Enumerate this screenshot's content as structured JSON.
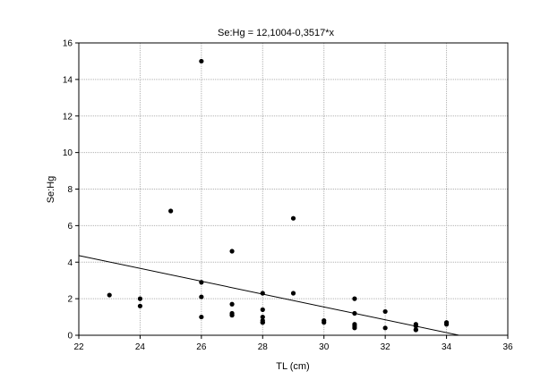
{
  "chart_data": {
    "type": "scatter",
    "title": "Se:Hg = 12,1004-0,3517*x",
    "xlabel": "TL (cm)",
    "ylabel": "Se:Hg",
    "xlim": [
      22,
      36
    ],
    "ylim": [
      0,
      16
    ],
    "xticks": [
      22,
      24,
      26,
      28,
      30,
      32,
      34,
      36
    ],
    "yticks": [
      0,
      2,
      4,
      6,
      8,
      10,
      12,
      14,
      16
    ],
    "grid": true,
    "legend": "none",
    "colors": {
      "points": "#000000",
      "line": "#000000",
      "grid": "#b0b0b0",
      "axis": "#000000"
    },
    "regression": {
      "intercept": 12.1004,
      "slope": -0.3517
    },
    "series": [
      {
        "x": [
          23,
          24,
          24,
          25,
          26,
          26,
          26,
          26,
          27,
          27,
          27,
          27,
          27,
          28,
          28,
          28,
          28,
          28,
          28,
          29,
          29,
          30,
          30,
          31,
          31,
          31,
          31,
          31,
          32,
          32,
          33,
          33,
          33,
          33,
          34,
          34
        ],
        "y": [
          2.2,
          2.0,
          1.6,
          6.8,
          15.0,
          2.9,
          2.1,
          1.0,
          4.6,
          1.7,
          1.2,
          1.1,
          1.1,
          2.3,
          1.4,
          1.0,
          0.8,
          0.7,
          0.7,
          6.4,
          2.3,
          0.8,
          0.7,
          2.0,
          1.2,
          0.6,
          0.5,
          0.4,
          1.3,
          0.4,
          0.6,
          0.5,
          0.3,
          0.3,
          0.7,
          0.6
        ]
      }
    ]
  }
}
